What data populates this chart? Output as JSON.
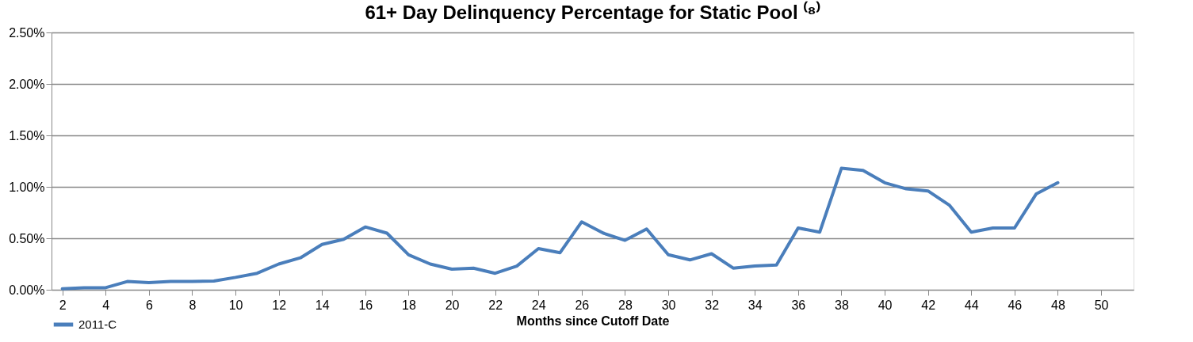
{
  "chart_data": {
    "type": "line",
    "title": "61+ Day Delinquency Percentage for Static Pool ⁽⁸⁾",
    "xlabel": "Months since Cutoff Date",
    "x": [
      2,
      3,
      4,
      5,
      6,
      7,
      8,
      9,
      10,
      11,
      12,
      13,
      14,
      15,
      16,
      17,
      18,
      19,
      20,
      21,
      22,
      23,
      24,
      25,
      26,
      27,
      28,
      29,
      30,
      31,
      32,
      33,
      34,
      35,
      36,
      37,
      38,
      39,
      40,
      41,
      42,
      43,
      44,
      45,
      46,
      47,
      48
    ],
    "series": [
      {
        "name": "2011-C",
        "color": "#4a7ebb",
        "values": [
          0.01,
          0.02,
          0.02,
          0.08,
          0.07,
          0.08,
          0.08,
          0.085,
          0.12,
          0.16,
          0.25,
          0.31,
          0.44,
          0.49,
          0.61,
          0.55,
          0.34,
          0.25,
          0.2,
          0.21,
          0.16,
          0.23,
          0.4,
          0.36,
          0.66,
          0.55,
          0.48,
          0.59,
          0.34,
          0.29,
          0.35,
          0.21,
          0.23,
          0.24,
          0.6,
          0.56,
          1.18,
          1.16,
          1.04,
          0.98,
          0.96,
          0.82,
          0.56,
          0.6,
          0.6,
          0.93,
          1.04
        ]
      }
    ],
    "xlim": [
      1.5,
      51.5
    ],
    "xticks": [
      2,
      4,
      6,
      8,
      10,
      12,
      14,
      16,
      18,
      20,
      22,
      24,
      26,
      28,
      30,
      32,
      34,
      36,
      38,
      40,
      42,
      44,
      46,
      48,
      50
    ],
    "ylim": [
      0,
      2.5
    ],
    "yticks": [
      {
        "value": 0,
        "label": "0.00%"
      },
      {
        "value": 0.5,
        "label": "0.50%"
      },
      {
        "value": 1.0,
        "label": "1.00%"
      },
      {
        "value": 1.5,
        "label": "1.50%"
      },
      {
        "value": 2.0,
        "label": "2.00%"
      },
      {
        "value": 2.5,
        "label": "2.50%"
      }
    ],
    "grid": "y",
    "legend": "bottom left",
    "marker": "none",
    "line_style": "solid"
  }
}
